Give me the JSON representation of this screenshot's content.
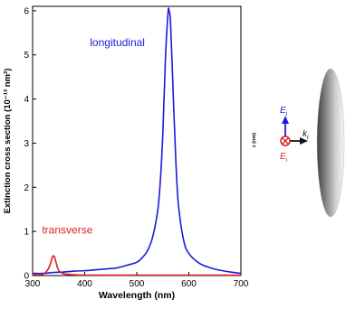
{
  "chart_data": {
    "type": "line",
    "title": "",
    "xlabel": "Wavelength (nm)",
    "ylabel": "Extinction cross section (10⁻¹³ nm²)",
    "xlim": [
      300,
      700
    ],
    "ylim": [
      0,
      6.1
    ],
    "xticks": [
      300,
      400,
      500,
      600,
      700
    ],
    "yticks": [
      0,
      1,
      2,
      3,
      4,
      5,
      6
    ],
    "grid": false,
    "series": [
      {
        "name": "longitudinal",
        "color": "#1a1adc",
        "label_anchor": [
          410,
          5.2
        ],
        "x": [
          300,
          320,
          340,
          360,
          380,
          400,
          420,
          440,
          460,
          480,
          500,
          510,
          520,
          530,
          540,
          545,
          550,
          555,
          560,
          562,
          565,
          570,
          575,
          580,
          590,
          600,
          620,
          640,
          660,
          680,
          700
        ],
        "y": [
          0.05,
          0.05,
          0.07,
          0.08,
          0.1,
          0.11,
          0.13,
          0.15,
          0.17,
          0.23,
          0.3,
          0.4,
          0.55,
          0.85,
          1.45,
          2.1,
          3.2,
          4.9,
          5.95,
          6.0,
          5.7,
          4.1,
          2.6,
          1.6,
          0.8,
          0.5,
          0.28,
          0.18,
          0.12,
          0.08,
          0.05
        ]
      },
      {
        "name": "transverse",
        "color": "#dc1f1f",
        "label_anchor": [
          318,
          0.95
        ],
        "x": [
          300,
          320,
          330,
          335,
          338,
          340,
          342,
          345,
          350,
          360,
          380,
          400,
          500,
          600,
          700
        ],
        "y": [
          0.02,
          0.03,
          0.15,
          0.3,
          0.42,
          0.45,
          0.42,
          0.3,
          0.12,
          0.04,
          0.02,
          0.01,
          0.01,
          0.01,
          0.01
        ]
      }
    ]
  },
  "inset": {
    "axis_label": "z (nm)",
    "field_label": "E",
    "field_subscript": "i",
    "wave_label": "k",
    "wave_subscript": "i",
    "colors": {
      "field_up": "#1a1adc",
      "field_out": "#dc1f1f",
      "wave": "#111111"
    }
  }
}
